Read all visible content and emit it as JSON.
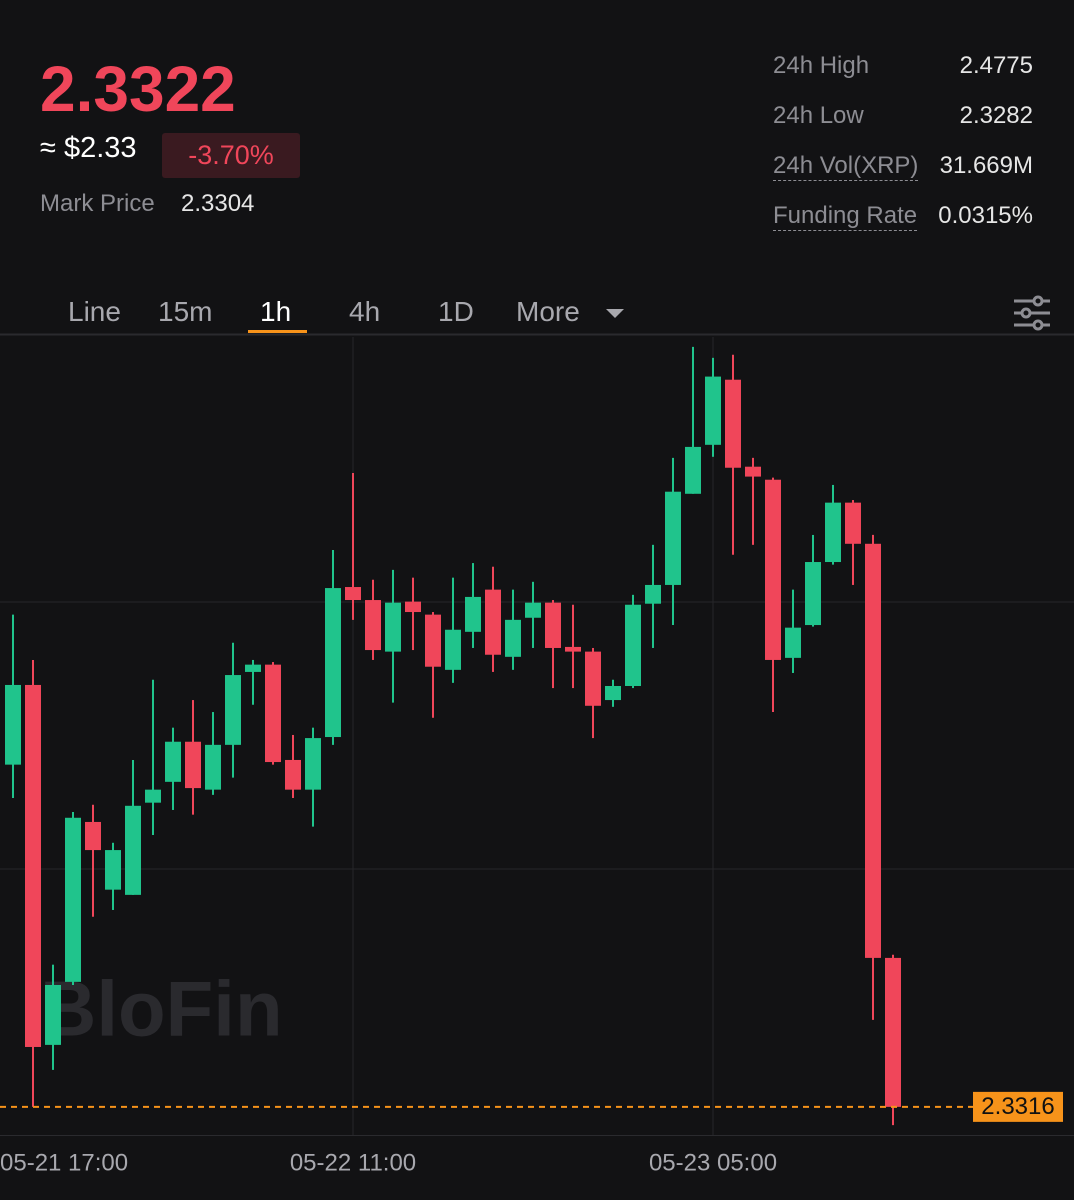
{
  "ticker": {
    "price": "2.3322",
    "usd": "≈ $2.33",
    "change": "-3.70%",
    "mark_price_label": "Mark Price",
    "mark_price": "2.3304"
  },
  "stats": [
    {
      "label": "24h High",
      "value": "2.4775"
    },
    {
      "label": "24h Low",
      "value": "2.3282"
    },
    {
      "label": "24h Vol(XRP)",
      "value": "31.669M"
    },
    {
      "label": "Funding Rate",
      "value": "0.0315%"
    }
  ],
  "tabs": [
    "Line",
    "15m",
    "1h",
    "4h",
    "1D",
    "More"
  ],
  "watermark": "BloFin",
  "chart_data": {
    "type": "candlestick",
    "open": [
      2.3973,
      2.4126,
      2.3435,
      2.3556,
      2.3863,
      2.3733,
      2.3723,
      2.39,
      2.394,
      2.4017,
      2.3925,
      2.4011,
      2.4151,
      2.4165,
      2.3982,
      2.3925,
      2.4026,
      2.4314,
      2.4289,
      2.419,
      2.4286,
      2.4261,
      2.4155,
      2.4228,
      2.4309,
      2.418,
      2.4255,
      2.4284,
      2.4199,
      2.419,
      2.4097,
      2.4124,
      2.4282,
      2.4318,
      2.4493,
      2.4587,
      2.4712,
      2.4545,
      2.452,
      2.4178,
      2.4241,
      2.4362,
      2.4476,
      2.4397,
      2.3602
    ],
    "high": [
      2.4261,
      2.4174,
      2.3589,
      2.3882,
      2.3896,
      2.3823,
      2.3982,
      2.4136,
      2.4044,
      2.4097,
      2.4074,
      2.4207,
      2.4174,
      2.417,
      2.403,
      2.4044,
      2.4385,
      2.4533,
      2.4328,
      2.4347,
      2.4332,
      2.4266,
      2.4332,
      2.436,
      2.4353,
      2.4309,
      2.4324,
      2.4289,
      2.428,
      2.4197,
      2.4136,
      2.4299,
      2.4395,
      2.4562,
      2.4775,
      2.4754,
      2.476,
      2.4562,
      2.4524,
      2.4309,
      2.4414,
      2.451,
      2.4481,
      2.4414,
      2.3608
    ],
    "low": [
      2.3909,
      2.3316,
      2.3387,
      2.355,
      2.3681,
      2.3694,
      2.3723,
      2.3838,
      2.3886,
      2.3877,
      2.3915,
      2.3948,
      2.4088,
      2.3973,
      2.3909,
      2.3854,
      2.4011,
      2.4251,
      2.4174,
      2.4092,
      2.4193,
      2.4063,
      2.413,
      2.4197,
      2.4151,
      2.4155,
      2.4197,
      2.412,
      2.412,
      2.4024,
      2.4084,
      2.412,
      2.4197,
      2.4241,
      2.4493,
      2.4564,
      2.4376,
      2.4395,
      2.4074,
      2.4149,
      2.4238,
      2.4357,
      2.4318,
      2.3483,
      2.3281
    ],
    "close": [
      2.4126,
      2.3431,
      2.355,
      2.3871,
      2.3809,
      2.3809,
      2.3894,
      2.3925,
      2.4017,
      2.3928,
      2.4011,
      2.4145,
      2.4165,
      2.3978,
      2.3925,
      2.4024,
      2.4312,
      2.4289,
      2.4193,
      2.4284,
      2.4266,
      2.4161,
      2.4232,
      2.4295,
      2.4184,
      2.4251,
      2.4284,
      2.4197,
      2.419,
      2.4086,
      2.4124,
      2.428,
      2.4318,
      2.4497,
      2.4583,
      2.4718,
      2.4543,
      2.4526,
      2.4174,
      2.4236,
      2.4362,
      2.4476,
      2.4397,
      2.3602,
      2.3316
    ],
    "up_color": "#20c48c",
    "down_color": "#f0465a",
    "xlim": [
      -0.65,
      53.05
    ],
    "xticks": [
      {
        "value": -1,
        "label": "05-21 17:00"
      },
      {
        "value": 17,
        "label": "05-22 11:00"
      },
      {
        "value": 35,
        "label": "05-23 05:00"
      }
    ],
    "ylim": [
      2.3262,
      2.4794
    ],
    "last_price": 2.3316,
    "last_price_color": "#f7931a"
  }
}
